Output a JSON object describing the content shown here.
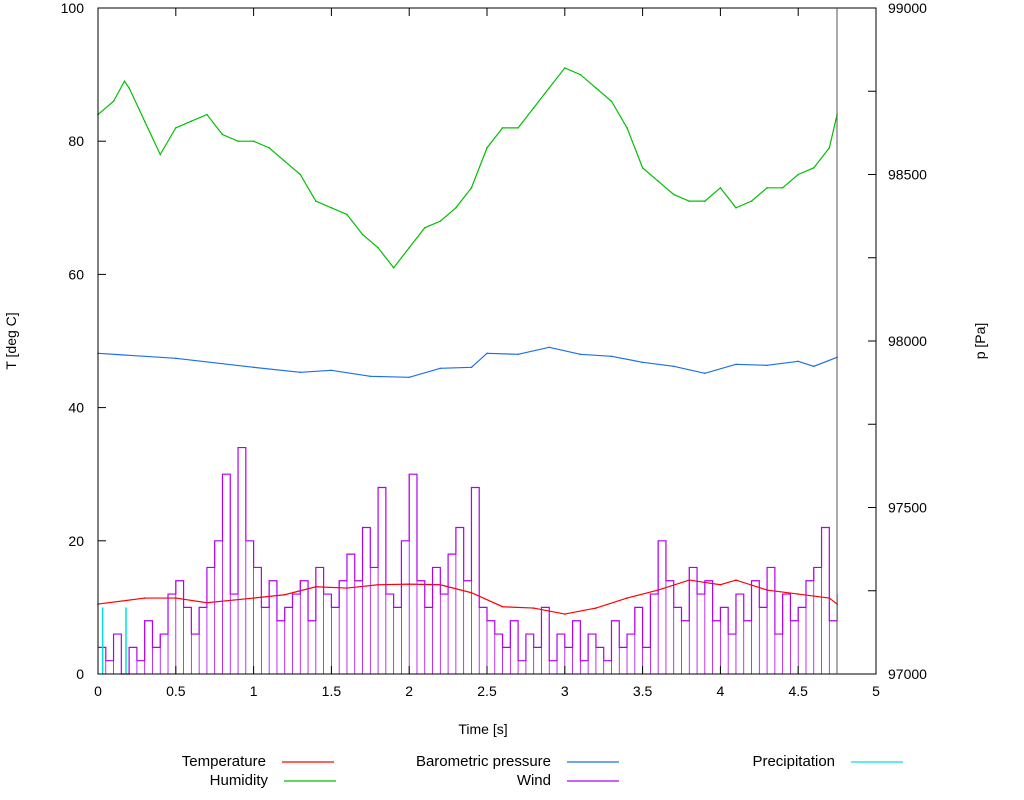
{
  "chart_data": {
    "type": "line",
    "xlabel": "Time [s]",
    "ylabel": "T [deg C]",
    "y2label": "p [Pa]",
    "xlim": [
      0,
      5
    ],
    "ylim": [
      0,
      100
    ],
    "y2lim": [
      97000,
      99000
    ],
    "xticks": [
      "0",
      "0.5",
      "1",
      "1.5",
      "2",
      "2.5",
      "3",
      "3.5",
      "4",
      "4.5",
      "5"
    ],
    "yticks": [
      "0",
      "20",
      "40",
      "60",
      "80",
      "100"
    ],
    "y2ticks": [
      "97000",
      "97500",
      "98000",
      "98500",
      "99000"
    ],
    "grid": false,
    "legend_position": "bottom",
    "series": [
      {
        "name": "Temperature",
        "color": "#ff0000",
        "axis": "left",
        "style": "line",
        "x": [
          0,
          0.3,
          0.5,
          0.7,
          1.0,
          1.2,
          1.4,
          1.6,
          1.8,
          2.0,
          2.2,
          2.4,
          2.6,
          2.8,
          3.0,
          3.2,
          3.4,
          3.6,
          3.8,
          4.0,
          4.1,
          4.3,
          4.5,
          4.7,
          4.75
        ],
        "y": [
          10.5,
          11.4,
          11.4,
          10.7,
          11.4,
          11.9,
          13.1,
          12.9,
          13.4,
          13.5,
          13.4,
          12.2,
          10.1,
          9.9,
          9.0,
          9.9,
          11.4,
          12.6,
          14.1,
          13.4,
          14.1,
          12.6,
          12.0,
          11.4,
          10.5
        ]
      },
      {
        "name": "Humidity",
        "color": "#00c000",
        "axis": "left",
        "style": "line",
        "x": [
          0,
          0.1,
          0.17,
          0.2,
          0.3,
          0.4,
          0.5,
          0.6,
          0.7,
          0.8,
          0.9,
          1.0,
          1.1,
          1.2,
          1.3,
          1.4,
          1.5,
          1.6,
          1.7,
          1.8,
          1.9,
          2.0,
          2.1,
          2.2,
          2.3,
          2.4,
          2.5,
          2.6,
          2.7,
          2.8,
          2.9,
          3.0,
          3.1,
          3.2,
          3.3,
          3.4,
          3.5,
          3.6,
          3.7,
          3.8,
          3.9,
          4.0,
          4.1,
          4.2,
          4.3,
          4.4,
          4.5,
          4.6,
          4.7,
          4.75
        ],
        "y": [
          84,
          86,
          89,
          88,
          83,
          78,
          82,
          83,
          84,
          81,
          80,
          80,
          79,
          77,
          75,
          71,
          70,
          69,
          66,
          64,
          61,
          64,
          67,
          68,
          70,
          73,
          79,
          82,
          82,
          85,
          88,
          91,
          90,
          88,
          86,
          82,
          76,
          74,
          72,
          71,
          71,
          73,
          70,
          71,
          73,
          73,
          75,
          76,
          79,
          84
        ]
      },
      {
        "name": "Barometric pressure",
        "color": "#1e6fe6",
        "axis": "right",
        "style": "line",
        "x": [
          0,
          0.5,
          1.0,
          1.3,
          1.5,
          1.75,
          2.0,
          2.2,
          2.4,
          2.5,
          2.7,
          2.9,
          3.1,
          3.3,
          3.5,
          3.7,
          3.9,
          4.1,
          4.3,
          4.5,
          4.6,
          4.75
        ],
        "y": [
          97963,
          97948,
          97921,
          97906,
          97912,
          97894,
          97891,
          97918,
          97921,
          97963,
          97960,
          97981,
          97960,
          97954,
          97936,
          97924,
          97903,
          97930,
          97927,
          97939,
          97924,
          97951
        ]
      },
      {
        "name": "Wind",
        "color": "#b000f0",
        "axis": "left",
        "style": "steps",
        "x0": 0,
        "dx": 0.05,
        "y": [
          4,
          2,
          6,
          0,
          4,
          2,
          8,
          4,
          6,
          12,
          14,
          10,
          6,
          10,
          16,
          20,
          30,
          12,
          34,
          20,
          16,
          10,
          14,
          8,
          10,
          12,
          14,
          8,
          16,
          12,
          10,
          14,
          18,
          14,
          22,
          16,
          28,
          12,
          10,
          20,
          30,
          14,
          10,
          16,
          12,
          18,
          22,
          14,
          28,
          10,
          8,
          6,
          4,
          8,
          2,
          6,
          4,
          10,
          2,
          6,
          4,
          8,
          2,
          6,
          4,
          2,
          8,
          4,
          6,
          10,
          4,
          12,
          20,
          14,
          10,
          8,
          16,
          12,
          14,
          8,
          10,
          6,
          12,
          8,
          14,
          10,
          16,
          6,
          12,
          8,
          10,
          14,
          16,
          22,
          8,
          12
        ]
      },
      {
        "name": "Precipitation",
        "color": "#00e0e0",
        "axis": "left",
        "style": "impulses",
        "x": [
          0.03,
          0.18
        ],
        "y": [
          10,
          10
        ]
      }
    ]
  }
}
